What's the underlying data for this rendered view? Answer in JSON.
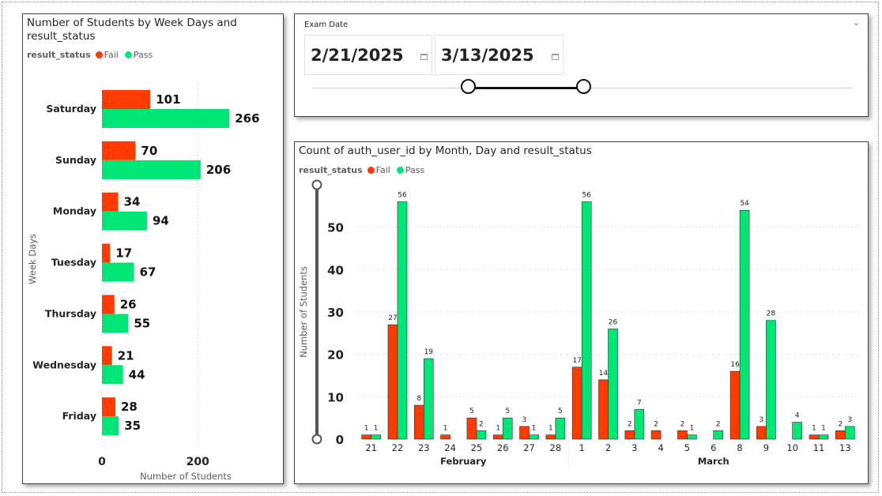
{
  "left_chart": {
    "title_line1": "Number of Students by Week Days and",
    "title_line2": "result_status",
    "legend_title": "result_status",
    "legend": [
      {
        "label": "Fail",
        "color": "#ff3b00"
      },
      {
        "label": "Pass",
        "color": "#00e676"
      }
    ],
    "chart_data": {
      "type": "bar",
      "orientation": "horizontal",
      "title": "Number of Students by Week Days and result_status",
      "categories": [
        "Saturday",
        "Sunday",
        "Monday",
        "Tuesday",
        "Thursday",
        "Wednesday",
        "Friday"
      ],
      "series": [
        {
          "name": "Fail",
          "color": "#ff3b00",
          "values": [
            101,
            70,
            34,
            17,
            26,
            21,
            28
          ]
        },
        {
          "name": "Pass",
          "color": "#00e676",
          "values": [
            266,
            206,
            94,
            67,
            55,
            44,
            35
          ]
        }
      ],
      "xlabel": "Number of Students",
      "ylabel": "Week Days",
      "xticks": [
        0,
        200
      ],
      "xlim": [
        0,
        330
      ]
    }
  },
  "slicer": {
    "header": "Exam Date",
    "start_date": "2/21/2025",
    "end_date": "3/13/2025",
    "chevron": "chevron-down-icon"
  },
  "right_chart": {
    "title": "Count of auth_user_id by Month, Day and result_status",
    "legend_title": "result_status",
    "legend": [
      {
        "label": "Fail",
        "color": "#ff3b00"
      },
      {
        "label": "Pass",
        "color": "#00e676"
      }
    ],
    "chart_data": {
      "type": "bar",
      "title": "Count of auth_user_id by Month, Day and result_status",
      "categories": [
        "21",
        "22",
        "23",
        "24",
        "25",
        "26",
        "27",
        "28",
        "1",
        "2",
        "3",
        "4",
        "5",
        "6",
        "8",
        "9",
        "10",
        "11",
        "13"
      ],
      "months": [
        {
          "name": "February",
          "from": 0,
          "to": 7
        },
        {
          "name": "March",
          "from": 8,
          "to": 18
        }
      ],
      "series": [
        {
          "name": "Fail",
          "color": "#ff3b00",
          "values": [
            1,
            27,
            8,
            1,
            5,
            1,
            3,
            1,
            17,
            14,
            2,
            2,
            2,
            null,
            16,
            3,
            null,
            1,
            2
          ]
        },
        {
          "name": "Pass",
          "color": "#00e676",
          "values": [
            1,
            56,
            19,
            null,
            2,
            5,
            1,
            5,
            56,
            26,
            7,
            null,
            1,
            2,
            54,
            28,
            4,
            1,
            3
          ]
        }
      ],
      "ylabel": "Number of Students",
      "yticks": [
        0,
        10,
        20,
        30,
        40,
        50
      ],
      "ylim": [
        0,
        60
      ],
      "grid": true
    }
  }
}
